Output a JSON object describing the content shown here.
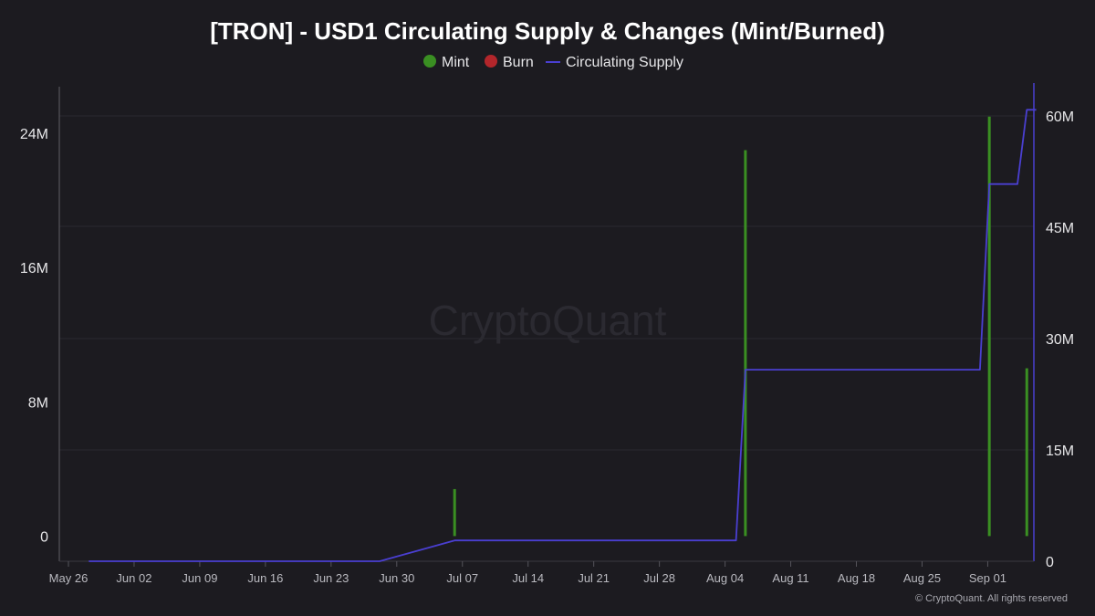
{
  "chart_data": {
    "type": "bar+line",
    "title": "[TRON] - USD1 Circulating Supply & Changes (Mint/Burned)",
    "legend": [
      {
        "name": "Mint",
        "color": "#3a8f22",
        "marker": "circle"
      },
      {
        "name": "Burn",
        "color": "#b3262b",
        "marker": "circle"
      },
      {
        "name": "Circulating Supply",
        "color": "#4a3fd1",
        "marker": "line"
      }
    ],
    "x_start": "2025-05-26",
    "x_end": "2025-09-05",
    "x_ticks": [
      "May 26",
      "Jun 02",
      "Jun 09",
      "Jun 16",
      "Jun 23",
      "Jun 30",
      "Jul 07",
      "Jul 14",
      "Jul 21",
      "Jul 28",
      "Aug 04",
      "Aug 11",
      "Aug 18",
      "Aug 25",
      "Sep 01"
    ],
    "y_left": {
      "ylim": [
        -1500000,
        27000000
      ],
      "ticks": [
        0,
        8000000,
        16000000,
        24000000
      ],
      "tick_labels": [
        "0",
        "8M",
        "16M",
        "24M"
      ]
    },
    "y_right": {
      "ylim": [
        0,
        66000000
      ],
      "ticks": [
        0,
        15000000,
        30000000,
        45000000,
        60000000
      ],
      "tick_labels": [
        "0",
        "15M",
        "30M",
        "45M",
        "60M"
      ]
    },
    "series": [
      {
        "name": "Mint",
        "axis": "left",
        "type": "bar",
        "points": [
          {
            "x": "2025-07-05",
            "y": 2800000
          },
          {
            "x": "2025-08-05",
            "y": 23000000
          },
          {
            "x": "2025-08-31",
            "y": 25000000
          },
          {
            "x": "2025-09-04",
            "y": 10000000
          }
        ]
      },
      {
        "name": "Burn",
        "axis": "left",
        "type": "bar",
        "points": []
      },
      {
        "name": "Circulating Supply",
        "axis": "right",
        "type": "line",
        "points": [
          {
            "x": "2025-05-27",
            "y": 0
          },
          {
            "x": "2025-06-27",
            "y": 0
          },
          {
            "x": "2025-07-05",
            "y": 2800000
          },
          {
            "x": "2025-08-04",
            "y": 2800000
          },
          {
            "x": "2025-08-05",
            "y": 25800000
          },
          {
            "x": "2025-08-30",
            "y": 25800000
          },
          {
            "x": "2025-08-31",
            "y": 50800000
          },
          {
            "x": "2025-09-03",
            "y": 50800000
          },
          {
            "x": "2025-09-04",
            "y": 60800000
          },
          {
            "x": "2025-09-05",
            "y": 60800000
          }
        ]
      }
    ]
  },
  "watermark": "CryptoQuant",
  "copyright": "© CryptoQuant. All rights reserved"
}
